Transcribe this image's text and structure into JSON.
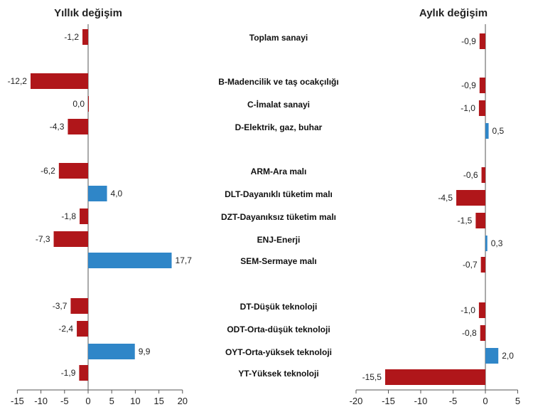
{
  "colors": {
    "negative": "#b0161a",
    "positive": "#2f86c8",
    "axis": "#555555"
  },
  "chart_data": [
    {
      "type": "bar",
      "orientation": "horizontal",
      "title": "Yıllık değişim",
      "xlim": [
        -15,
        20
      ],
      "ticks": [
        -15,
        -10,
        -5,
        0,
        5,
        10,
        15,
        20
      ],
      "tick_labels": [
        "-15",
        "-10",
        "-5",
        "0",
        "5",
        "10",
        "15",
        "20"
      ],
      "categories": [
        "Toplam sanayi",
        "B-Madencilik ve taş ocakçılığı",
        "C-İmalat sanayi",
        "D-Elektrik, gaz, buhar",
        "ARM-Ara malı",
        "DLT-Dayanıklı tüketim malı",
        "DZT-Dayanıksız tüketim malı",
        "ENJ-Enerji",
        "SEM-Sermaye malı",
        "DT-Düşük teknoloji",
        "ODT-Orta-düşük teknoloji",
        "OYT-Orta-yüksek teknoloji",
        "YT-Yüksek teknoloji"
      ],
      "values": [
        -1.2,
        -12.2,
        0.0,
        -4.3,
        -6.2,
        4.0,
        -1.8,
        -7.3,
        17.7,
        -3.7,
        -2.4,
        9.9,
        -1.9
      ],
      "value_labels": [
        "-1,2",
        "-12,2",
        "0,0",
        "-4,3",
        "-6,2",
        "4,0",
        "-1,8",
        "-7,3",
        "17,7",
        "-3,7",
        "-2,4",
        "9,9",
        "-1,9"
      ]
    },
    {
      "type": "bar",
      "orientation": "horizontal",
      "title": "Aylık değişim",
      "xlim": [
        -20,
        5
      ],
      "ticks": [
        -20,
        -15,
        -10,
        -5,
        0,
        5
      ],
      "tick_labels": [
        "-20",
        "-15",
        "-10",
        "-5",
        "0",
        "5"
      ],
      "categories": [
        "Toplam sanayi",
        "B-Madencilik ve taş ocakçılığı",
        "C-İmalat sanayi",
        "D-Elektrik, gaz, buhar",
        "ARM-Ara malı",
        "DLT-Dayanıklı tüketim malı",
        "DZT-Dayanıksız tüketim malı",
        "ENJ-Enerji",
        "SEM-Sermaye malı",
        "DT-Düşük teknoloji",
        "ODT-Orta-düşük teknoloji",
        "OYT-Orta-yüksek teknoloji",
        "YT-Yüksek teknoloji"
      ],
      "values": [
        -0.9,
        -0.9,
        -1.0,
        0.5,
        -0.6,
        -4.5,
        -1.5,
        0.3,
        -0.7,
        -1.0,
        -0.8,
        2.0,
        -15.5
      ],
      "value_labels": [
        "-0,9",
        "-0,9",
        "-1,0",
        "0,5",
        "-0,6",
        "-4,5",
        "-1,5",
        "0,3",
        "-0,7",
        "-1,0",
        "-0,8",
        "2,0",
        "-15,5"
      ]
    }
  ]
}
